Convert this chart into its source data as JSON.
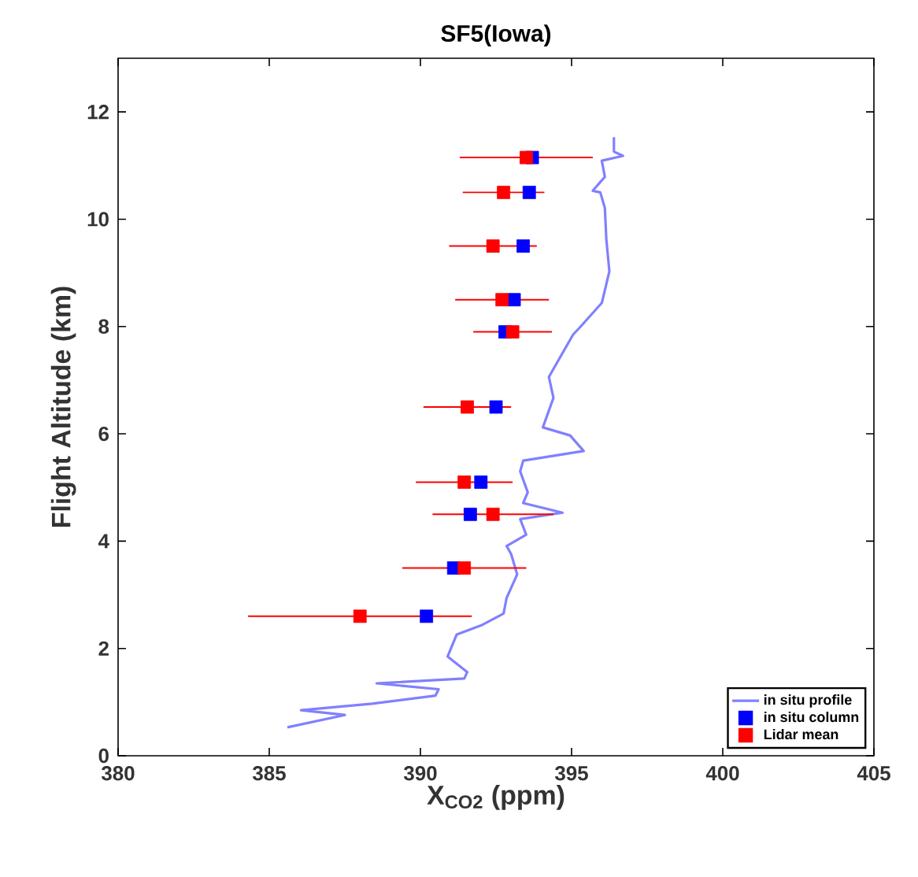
{
  "chart_data": {
    "type": "scatter",
    "title": "SF5(Iowa)",
    "xlabel": "X$_{CO2}$ (ppm)",
    "ylabel": "Flight Altitude (km)",
    "xlim": [
      380,
      405
    ],
    "xticks": [
      380,
      385,
      390,
      395,
      400,
      405
    ],
    "ylim": [
      0,
      13
    ],
    "yticks": [
      0,
      2,
      4,
      6,
      8,
      10,
      12
    ],
    "legend": "bottom right",
    "grid": false,
    "series": [
      {
        "name": "in situ profile",
        "type": "line",
        "color": "#8080ff",
        "marker": "none",
        "line_style": "solid",
        "x": [
          385.6,
          387.5,
          386.05,
          388.4,
          390.5,
          390.6,
          388.55,
          391.45,
          391.55,
          390.9,
          391.2,
          392.05,
          392.75,
          392.85,
          393.2,
          393.0,
          392.85,
          393.5,
          393.3,
          394.7,
          393.4,
          393.55,
          393.3,
          393.4,
          395.4,
          394.95,
          394.05,
          394.4,
          394.25,
          395.05,
          395.3,
          396.0,
          396.25,
          396.15,
          396.1,
          395.95,
          395.7,
          396.1,
          396.0,
          396.7,
          396.4,
          396.4
        ],
        "values": [
          0.53,
          0.76,
          0.85,
          0.97,
          1.12,
          1.24,
          1.35,
          1.44,
          1.56,
          1.85,
          2.26,
          2.44,
          2.65,
          2.94,
          3.38,
          3.76,
          3.91,
          4.12,
          4.41,
          4.53,
          4.71,
          4.91,
          5.3,
          5.5,
          5.68,
          5.97,
          6.12,
          6.67,
          7.06,
          7.85,
          8.0,
          8.44,
          9.03,
          9.62,
          10.21,
          10.5,
          10.53,
          10.79,
          11.09,
          11.18,
          11.26,
          11.53
        ]
      },
      {
        "name": "in situ  column",
        "type": "scatter",
        "color": "#0000ff",
        "marker": "square",
        "x": [
          393.7,
          393.6,
          393.4,
          393.1,
          392.8,
          392.5,
          392.0,
          391.65,
          391.1,
          390.2
        ],
        "values": [
          11.15,
          10.5,
          9.5,
          8.5,
          7.9,
          6.5,
          5.1,
          4.5,
          3.5,
          2.6
        ]
      },
      {
        "name": "Lidar mean",
        "type": "scatter",
        "color": "#ff0000",
        "marker": "square",
        "x": [
          393.5,
          392.75,
          392.4,
          392.7,
          393.05,
          391.55,
          391.45,
          392.4,
          391.45,
          388.0
        ],
        "values": [
          11.15,
          10.5,
          9.5,
          8.5,
          7.9,
          6.5,
          5.1,
          4.5,
          3.5,
          2.6
        ],
        "xerrors": [
          2.2,
          1.35,
          1.45,
          1.55,
          1.3,
          1.45,
          1.6,
          2.0,
          2.05,
          3.7
        ]
      }
    ]
  }
}
